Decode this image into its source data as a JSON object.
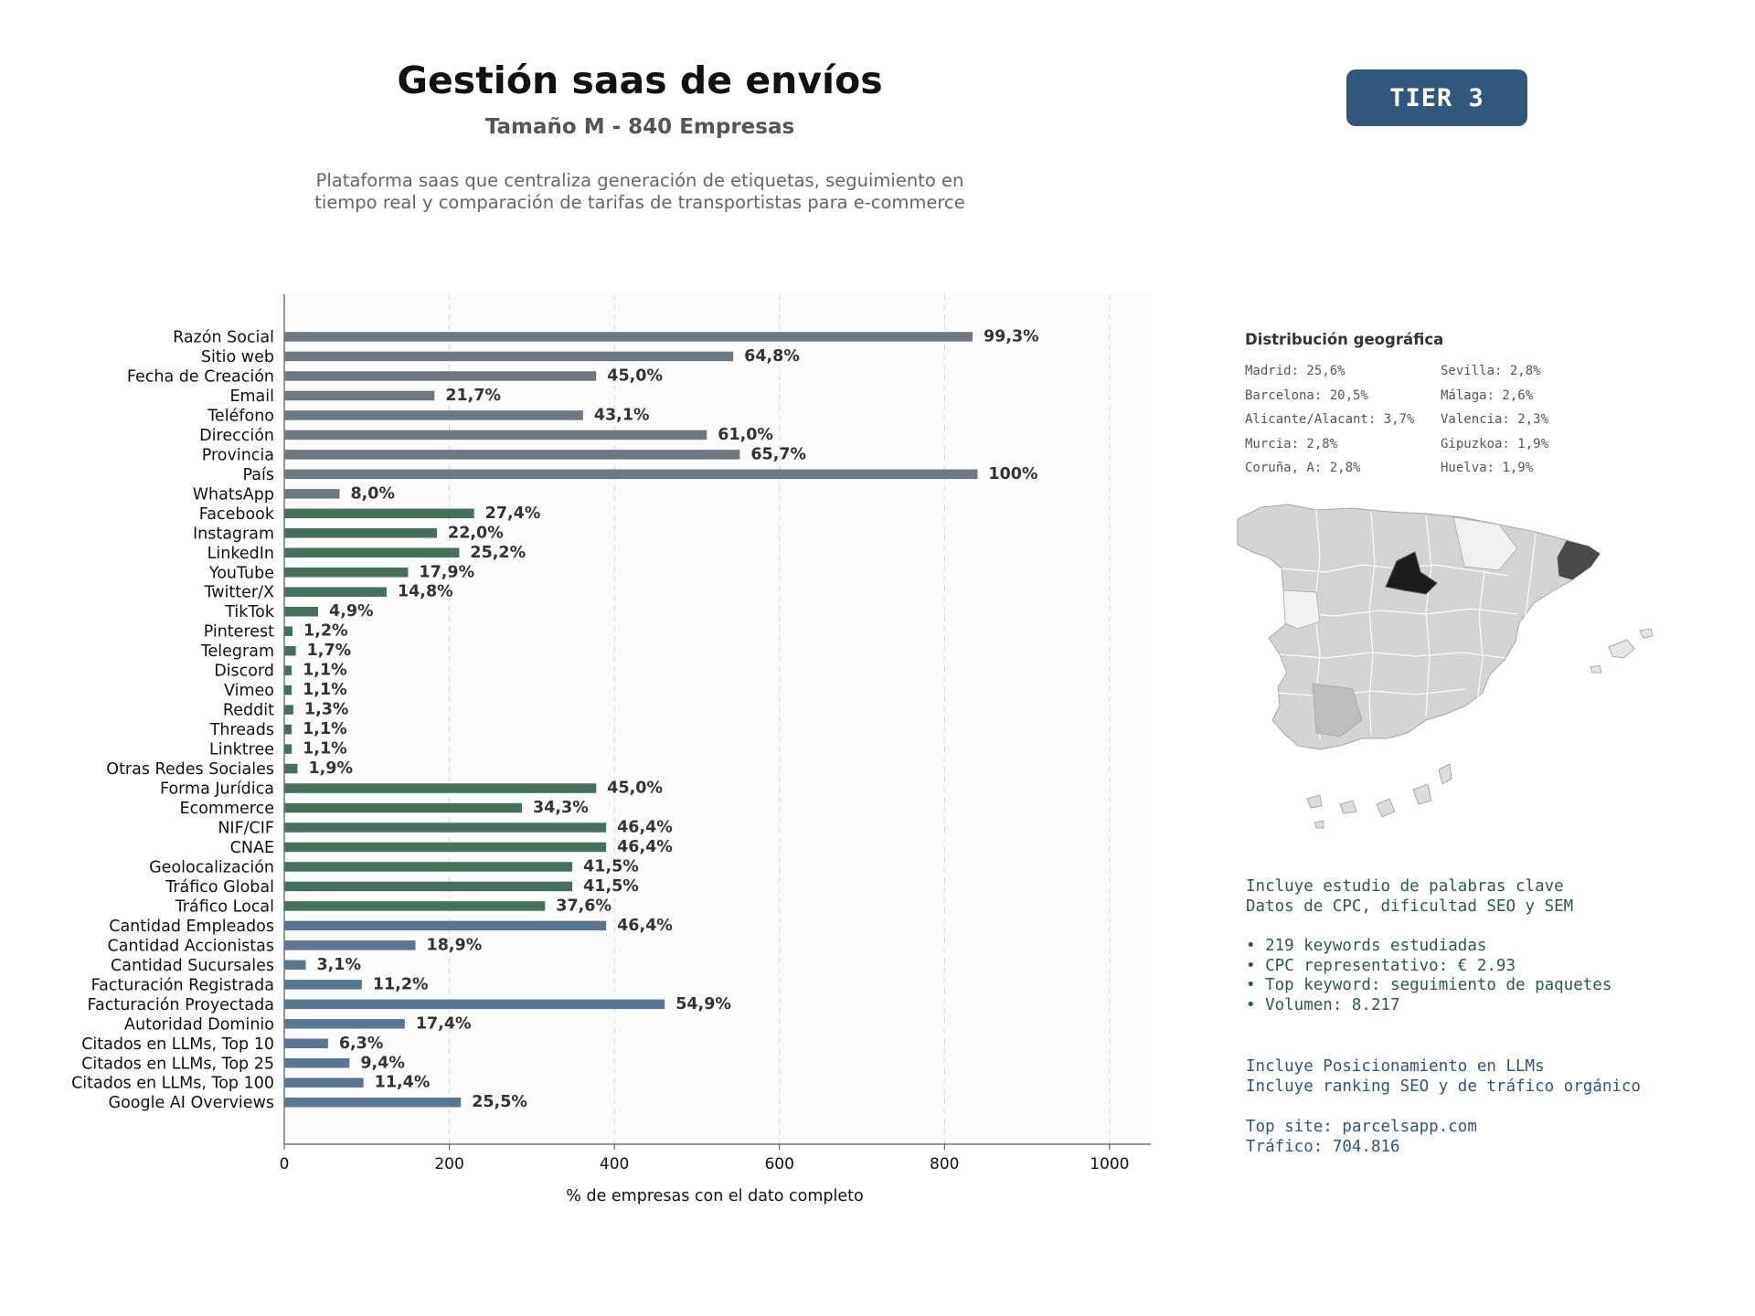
{
  "header": {
    "title": "Gestión saas de envíos",
    "subtitle": "Tamaño M - 840 Empresas",
    "description_line1": "Plataforma saas que centraliza generación de etiquetas, seguimiento en",
    "description_line2": "tiempo real y comparación de tarifas de transportistas para e-commerce",
    "tier_badge": "TIER 3"
  },
  "colors": {
    "gray": "#6f7780",
    "green": "#44705c",
    "blue": "#5a7691",
    "tier": "#32577d"
  },
  "chart_data": {
    "type": "bar",
    "orientation": "horizontal",
    "xlabel": "% de empresas con el dato completo",
    "xlim": [
      0,
      1050
    ],
    "xticks": [
      0,
      200,
      400,
      600,
      800,
      1000
    ],
    "grid": "vertical dashed",
    "categories": [
      "Razón Social",
      "Sitio web",
      "Fecha de Creación",
      "Email",
      "Teléfono",
      "Dirección",
      "Provincia",
      "País",
      "WhatsApp",
      "Facebook",
      "Instagram",
      "LinkedIn",
      "YouTube",
      "Twitter/X",
      "TikTok",
      "Pinterest",
      "Telegram",
      "Discord",
      "Vimeo",
      "Reddit",
      "Threads",
      "Linktree",
      "Otras Redes Sociales",
      "Forma Jurídica",
      "Ecommerce",
      "NIF/CIF",
      "CNAE",
      "Geolocalización",
      "Tráfico Global",
      "Tráfico Local",
      "Cantidad Empleados",
      "Cantidad Accionistas",
      "Cantidad Sucursales",
      "Facturación Registrada",
      "Facturación Proyectada",
      "Autoridad Dominio",
      "Citados en LLMs, Top 10",
      "Citados en LLMs, Top 25",
      "Citados en LLMs, Top 100",
      "Google AI Overviews"
    ],
    "values": [
      834,
      544,
      378,
      182,
      362,
      512,
      552,
      840,
      67,
      230,
      185,
      212,
      150,
      124,
      41,
      10,
      14,
      9,
      9,
      11,
      9,
      9,
      16,
      378,
      288,
      390,
      390,
      349,
      349,
      316,
      390,
      159,
      26,
      94,
      461,
      146,
      53,
      79,
      96,
      214
    ],
    "labels": [
      "99,3%",
      "64,8%",
      "45,0%",
      "21,7%",
      "43,1%",
      "61,0%",
      "65,7%",
      "100%",
      "8,0%",
      "27,4%",
      "22,0%",
      "25,2%",
      "17,9%",
      "14,8%",
      "4,9%",
      "1,2%",
      "1,7%",
      "1,1%",
      "1,1%",
      "1,3%",
      "1,1%",
      "1,1%",
      "1,9%",
      "45,0%",
      "34,3%",
      "46,4%",
      "46,4%",
      "41,5%",
      "41,5%",
      "37,6%",
      "46,4%",
      "18,9%",
      "3,1%",
      "11,2%",
      "54,9%",
      "17,4%",
      "6,3%",
      "9,4%",
      "11,4%",
      "25,5%"
    ],
    "groups": [
      "gray",
      "gray",
      "gray",
      "gray",
      "gray",
      "gray",
      "gray",
      "gray",
      "gray",
      "green",
      "green",
      "green",
      "green",
      "green",
      "green",
      "green",
      "green",
      "green",
      "green",
      "green",
      "green",
      "green",
      "green",
      "green",
      "green",
      "green",
      "green",
      "green",
      "green",
      "green",
      "blue",
      "blue",
      "blue",
      "blue",
      "blue",
      "blue",
      "blue",
      "blue",
      "blue",
      "blue"
    ]
  },
  "geo": {
    "title": "Distribución geográfica",
    "items": [
      "Madrid: 25,6%",
      "Sevilla: 2,8%",
      "Barcelona: 20,5%",
      "Málaga: 2,6%",
      "Alicante/Alacant: 3,7%",
      "Valencia: 2,3%",
      "Murcia: 2,8%",
      "Gipuzkoa: 1,9%",
      "Coruña, A: 2,8%",
      "Huelva: 1,9%"
    ]
  },
  "keywords": {
    "line1": "Incluye estudio de palabras clave",
    "line2": "Datos de CPC, dificultad SEO y SEM",
    "bullet1": "• 219 keywords estudiadas",
    "bullet2": "• CPC representativo: € 2.93",
    "bullet3": "• Top keyword: seguimiento de paquetes",
    "bullet4": "• Volumen: 8.217"
  },
  "llm": {
    "line1": "Incluye Posicionamiento en LLMs",
    "line2": "Incluye ranking SEO y de tráfico orgánico",
    "line3": "Top site: parcelsapp.com",
    "line4": "Tráfico: 704.816"
  }
}
